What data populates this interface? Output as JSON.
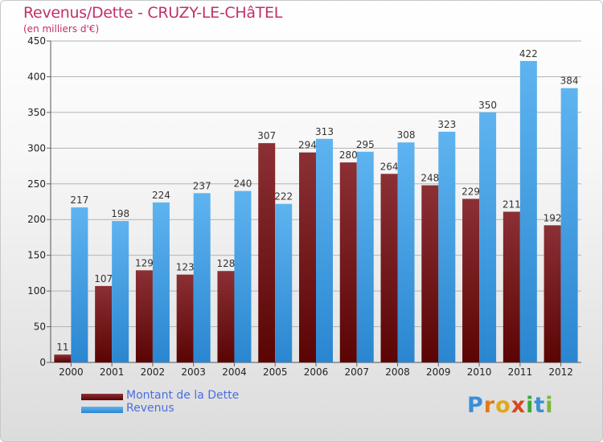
{
  "colors": {
    "dette_top": "#8b3035",
    "dette_bottom": "#5a0404",
    "revenus_top": "#5eb4f0",
    "revenus_bottom": "#2a86d0",
    "title": "#c2306a",
    "legend_text": "#4a6ee0"
  },
  "logo": {
    "text": "Proxiti",
    "letters": [
      {
        "ch": "P",
        "color": "#3a8fd8"
      },
      {
        "ch": "r",
        "color": "#e07a1a"
      },
      {
        "ch": "o",
        "color": "#e0a81a"
      },
      {
        "ch": "x",
        "color": "#d8481a"
      },
      {
        "ch": "i",
        "color": "#3aa83a"
      },
      {
        "ch": "t",
        "color": "#3a8fd8"
      },
      {
        "ch": "i",
        "color": "#7ab83a"
      }
    ]
  },
  "chart_data": {
    "type": "bar",
    "title": "Revenus/Dette - CRUZY-LE-CHâTEL",
    "subtitle": "(en milliers d'€)",
    "xlabel": "",
    "ylabel": "",
    "categories": [
      "2000",
      "2001",
      "2002",
      "2003",
      "2004",
      "2005",
      "2006",
      "2007",
      "2008",
      "2009",
      "2010",
      "2011",
      "2012"
    ],
    "series": [
      {
        "name": "Montant de la Dette",
        "values": [
          11,
          107,
          129,
          123,
          128,
          307,
          294,
          280,
          264,
          248,
          229,
          211,
          192
        ]
      },
      {
        "name": "Revenus",
        "values": [
          217,
          198,
          224,
          237,
          240,
          222,
          313,
          295,
          308,
          323,
          350,
          422,
          384
        ]
      }
    ],
    "ylim": [
      0,
      450
    ],
    "yticks": [
      0,
      50,
      100,
      150,
      200,
      250,
      300,
      350,
      400,
      450
    ],
    "grid": true,
    "legend_position": "bottom-left"
  }
}
